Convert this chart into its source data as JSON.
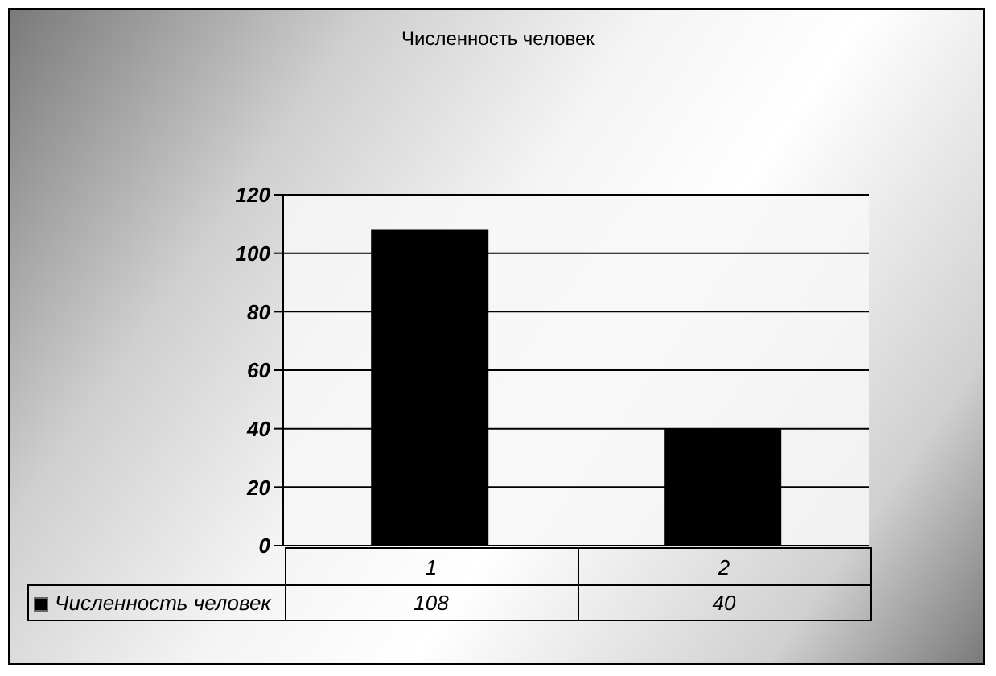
{
  "chart_data": {
    "type": "bar",
    "title": "Численность человек",
    "categories": [
      "1",
      "2"
    ],
    "series": [
      {
        "name": "Численность человек",
        "color": "#000000",
        "values": [
          108,
          40
        ]
      }
    ],
    "ylim": [
      0,
      120
    ],
    "yticks": [
      0,
      20,
      40,
      60,
      80,
      100,
      120
    ],
    "grid": "y",
    "legend": "bottom",
    "data_labels": true
  }
}
